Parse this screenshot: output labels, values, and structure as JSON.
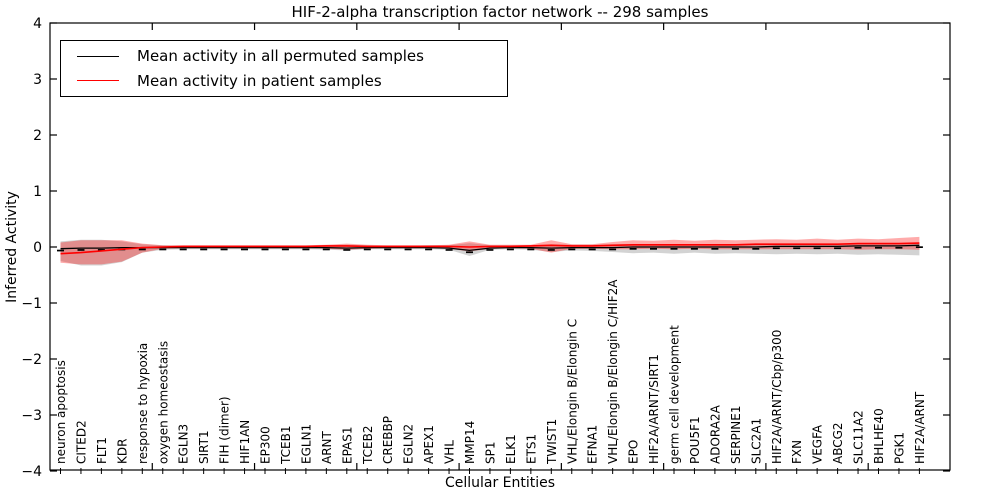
{
  "figure": {
    "title": "HIF-2-alpha transcription factor network -- 298 samples",
    "xlabel": "Cellular Entities",
    "ylabel": "Inferred Activity"
  },
  "legend": {
    "entries": [
      {
        "label": "Mean activity in all permuted samples",
        "color": "#000000"
      },
      {
        "label": "Mean activity in patient samples",
        "color": "#ff0000"
      }
    ]
  },
  "chart_data": {
    "type": "line",
    "title": "HIF-2-alpha transcription factor network -- 298 samples",
    "xlabel": "Cellular Entities",
    "ylabel": "Inferred Activity",
    "ylim": [
      -4,
      4
    ],
    "yticks": [
      -4,
      -3,
      -2,
      -1,
      0,
      1,
      2,
      3,
      4
    ],
    "grid": false,
    "legend_position": "upper left",
    "categories": [
      "neuron apoptosis",
      "CITED2",
      "FLT1",
      "KDR",
      "response to hypoxia",
      "oxygen homeostasis",
      "EGLN3",
      "SIRT1",
      "FIH (dimer)",
      "HIF1AN",
      "EP300",
      "TCEB1",
      "EGLN1",
      "ARNT",
      "EPAS1",
      "TCEB2",
      "CREBBP",
      "EGLN2",
      "APEX1",
      "VHL",
      "MMP14",
      "SP1",
      "ELK1",
      "ETS1",
      "TWIST1",
      "VHL/Elongin B/Elongin C",
      "EFNA1",
      "VHL/Elongin B/Elongin C/HIF2A",
      "EPO",
      "HIF2A/ARNT/SIRT1",
      "germ cell development",
      "POU5F1",
      "ADORA2A",
      "SERPINE1",
      "SLC2A1",
      "HIF2A/ARNT/Cbp/p300",
      "FXN",
      "VEGFA",
      "ABCG2",
      "SLC11A2",
      "BHLHE40",
      "PGK1",
      "HIF2A/ARNT"
    ],
    "series": [
      {
        "name": "Mean activity in all permuted samples",
        "color": "#000000",
        "band_color": "rgba(128,128,128,0.35)",
        "marker": "dash",
        "values": [
          -0.03,
          -0.02,
          -0.02,
          -0.01,
          -0.01,
          -0.01,
          -0.01,
          -0.01,
          -0.01,
          -0.01,
          -0.01,
          -0.01,
          -0.01,
          -0.01,
          -0.02,
          -0.01,
          -0.01,
          -0.01,
          -0.01,
          -0.02,
          -0.06,
          -0.02,
          -0.01,
          -0.01,
          -0.02,
          -0.01,
          -0.01,
          -0.01,
          0,
          0,
          0,
          0,
          0,
          0,
          0,
          0.01,
          0.01,
          0.01,
          0.01,
          0.02,
          0.02,
          0.02,
          0.03
        ],
        "band_upper": [
          0.1,
          0.13,
          0.13,
          0.1,
          0.05,
          0.03,
          0.02,
          0.02,
          0.02,
          0.02,
          0.02,
          0.02,
          0.02,
          0.03,
          0.04,
          0.03,
          0.02,
          0.02,
          0.03,
          0.03,
          0.07,
          0.03,
          0.03,
          0.03,
          0.05,
          0.04,
          0.04,
          0.05,
          0.05,
          0.04,
          0.05,
          0.04,
          0.05,
          0.05,
          0.05,
          0.05,
          0.05,
          0.05,
          0.05,
          0.05,
          0.05,
          0.06,
          0.06
        ],
        "band_lower": [
          -0.25,
          -0.33,
          -0.33,
          -0.27,
          -0.1,
          -0.05,
          -0.04,
          -0.04,
          -0.04,
          -0.04,
          -0.04,
          -0.04,
          -0.04,
          -0.05,
          -0.06,
          -0.04,
          -0.04,
          -0.04,
          -0.04,
          -0.05,
          -0.16,
          -0.05,
          -0.04,
          -0.05,
          -0.09,
          -0.06,
          -0.07,
          -0.09,
          -0.11,
          -0.1,
          -0.12,
          -0.1,
          -0.12,
          -0.11,
          -0.12,
          -0.13,
          -0.12,
          -0.13,
          -0.12,
          -0.14,
          -0.13,
          -0.14,
          -0.15
        ]
      },
      {
        "name": "Mean activity in patient samples",
        "color": "#ff0000",
        "band_color": "rgba(255,0,0,0.33)",
        "marker": "none",
        "values": [
          -0.12,
          -0.1,
          -0.07,
          -0.04,
          -0.01,
          0,
          0.01,
          0.01,
          0.01,
          0.01,
          0.01,
          0.01,
          0.01,
          0.02,
          0.02,
          0.01,
          0.01,
          0.01,
          0.01,
          0.01,
          0,
          0.01,
          0.01,
          0.02,
          0.03,
          0.02,
          0.02,
          0.03,
          0.04,
          0.04,
          0.04,
          0.04,
          0.04,
          0.04,
          0.05,
          0.05,
          0.05,
          0.05,
          0.05,
          0.06,
          0.06,
          0.06,
          0.07
        ],
        "band_upper": [
          0.08,
          0.12,
          0.12,
          0.12,
          0.06,
          0.03,
          0.03,
          0.03,
          0.03,
          0.03,
          0.03,
          0.03,
          0.03,
          0.04,
          0.06,
          0.04,
          0.03,
          0.03,
          0.03,
          0.04,
          0.1,
          0.04,
          0.04,
          0.04,
          0.12,
          0.05,
          0.05,
          0.09,
          0.12,
          0.11,
          0.13,
          0.11,
          0.13,
          0.12,
          0.13,
          0.14,
          0.13,
          0.15,
          0.13,
          0.15,
          0.14,
          0.16,
          0.18
        ],
        "band_lower": [
          -0.28,
          -0.31,
          -0.31,
          -0.26,
          -0.1,
          -0.03,
          -0.02,
          -0.02,
          -0.02,
          -0.02,
          -0.02,
          -0.02,
          -0.02,
          -0.03,
          -0.05,
          -0.03,
          -0.02,
          -0.02,
          -0.02,
          -0.03,
          -0.08,
          -0.03,
          -0.02,
          -0.03,
          -0.1,
          -0.03,
          -0.03,
          -0.04,
          -0.04,
          -0.03,
          -0.04,
          -0.03,
          -0.04,
          -0.04,
          -0.04,
          -0.04,
          -0.04,
          -0.04,
          -0.04,
          -0.05,
          -0.04,
          -0.04,
          -0.05
        ]
      }
    ]
  }
}
